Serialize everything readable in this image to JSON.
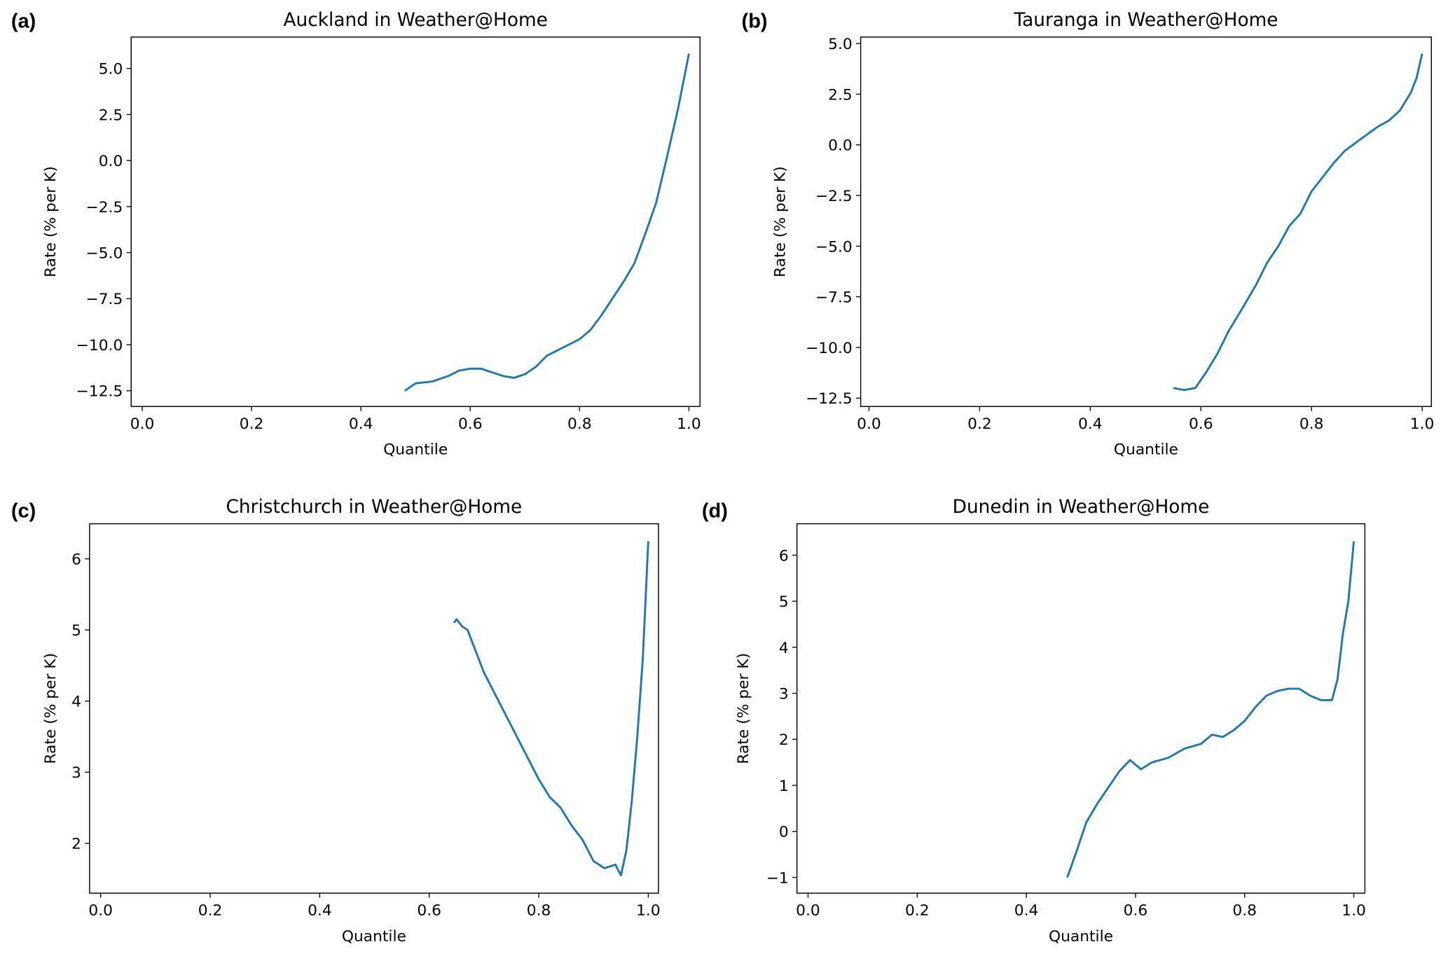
{
  "chart_data": [
    {
      "type": "line",
      "panel_label": "(a)",
      "title": "Auckland in Weather@Home",
      "xlabel": "Quantile",
      "ylabel": "Rate (% per K)",
      "xlim": [
        0,
        1
      ],
      "ylim": [
        -13.3,
        6.7
      ],
      "xticks": [
        "0.0",
        "0.2",
        "0.4",
        "0.6",
        "0.8",
        "1.0"
      ],
      "yticks": [
        5.0,
        2.5,
        0.0,
        -2.5,
        -5.0,
        -7.5,
        -10.0,
        -12.5
      ],
      "ytick_labels": [
        "5.0",
        "2.5",
        "0.0",
        "−2.5",
        "−5.0",
        "−7.5",
        "−10.0",
        "−12.5"
      ],
      "color": "#1f77b4",
      "x": [
        0.48,
        0.5,
        0.53,
        0.56,
        0.58,
        0.6,
        0.62,
        0.64,
        0.66,
        0.68,
        0.7,
        0.72,
        0.74,
        0.76,
        0.78,
        0.8,
        0.82,
        0.84,
        0.86,
        0.88,
        0.9,
        0.92,
        0.94,
        0.96,
        0.98,
        0.99,
        1.0
      ],
      "y": [
        -12.5,
        -12.1,
        -12.0,
        -11.7,
        -11.4,
        -11.3,
        -11.3,
        -11.5,
        -11.7,
        -11.8,
        -11.6,
        -11.2,
        -10.6,
        -10.3,
        -10.0,
        -9.7,
        -9.2,
        -8.4,
        -7.5,
        -6.6,
        -5.6,
        -4.0,
        -2.3,
        0.2,
        2.8,
        4.3,
        5.8
      ]
    },
    {
      "type": "line",
      "panel_label": "(b)",
      "title": "Tauranga in Weather@Home",
      "xlabel": "Quantile",
      "ylabel": "Rate (% per K)",
      "xlim": [
        0,
        1
      ],
      "ylim": [
        -12.9,
        5.3
      ],
      "xticks": [
        "0.0",
        "0.2",
        "0.4",
        "0.6",
        "0.8",
        "1.0"
      ],
      "yticks": [
        5.0,
        2.5,
        0.0,
        -2.5,
        -5.0,
        -7.5,
        -10.0,
        -12.5
      ],
      "ytick_labels": [
        "5.0",
        "2.5",
        "0.0",
        "−2.5",
        "−5.0",
        "−7.5",
        "−10.0",
        "−12.5"
      ],
      "color": "#1f77b4",
      "x": [
        0.55,
        0.57,
        0.59,
        0.61,
        0.63,
        0.65,
        0.67,
        0.7,
        0.72,
        0.74,
        0.76,
        0.78,
        0.8,
        0.82,
        0.84,
        0.86,
        0.88,
        0.9,
        0.92,
        0.94,
        0.96,
        0.98,
        0.99,
        1.0
      ],
      "y": [
        -12.0,
        -12.1,
        -12.0,
        -11.2,
        -10.3,
        -9.2,
        -8.3,
        -6.9,
        -5.8,
        -5.0,
        -4.0,
        -3.4,
        -2.3,
        -1.6,
        -0.9,
        -0.3,
        0.1,
        0.5,
        0.9,
        1.2,
        1.7,
        2.6,
        3.3,
        4.5
      ]
    },
    {
      "type": "line",
      "panel_label": "(c)",
      "title": "Christchurch in Weather@Home",
      "xlabel": "Quantile",
      "ylabel": "Rate (% per K)",
      "xlim": [
        0,
        1
      ],
      "ylim": [
        1.3,
        6.5
      ],
      "xticks": [
        "0.0",
        "0.2",
        "0.4",
        "0.6",
        "0.8",
        "1.0"
      ],
      "yticks": [
        6,
        5,
        4,
        3,
        2
      ],
      "ytick_labels": [
        "6",
        "5",
        "4",
        "3",
        "2"
      ],
      "color": "#1f77b4",
      "x": [
        0.645,
        0.65,
        0.66,
        0.67,
        0.68,
        0.7,
        0.72,
        0.74,
        0.76,
        0.78,
        0.8,
        0.82,
        0.84,
        0.86,
        0.88,
        0.9,
        0.92,
        0.94,
        0.95,
        0.96,
        0.97,
        0.98,
        0.99,
        1.0
      ],
      "y": [
        5.1,
        5.15,
        5.05,
        5.0,
        4.8,
        4.4,
        4.1,
        3.8,
        3.5,
        3.2,
        2.9,
        2.65,
        2.5,
        2.25,
        2.05,
        1.75,
        1.65,
        1.7,
        1.55,
        1.9,
        2.6,
        3.5,
        4.6,
        6.25
      ]
    },
    {
      "type": "line",
      "panel_label": "(d)",
      "title": "Dunedin in Weather@Home",
      "xlabel": "Quantile",
      "ylabel": "Rate (% per K)",
      "xlim": [
        0,
        1
      ],
      "ylim": [
        -1.3,
        6.7
      ],
      "xticks": [
        "0.0",
        "0.2",
        "0.4",
        "0.6",
        "0.8",
        "1.0"
      ],
      "yticks": [
        6,
        5,
        4,
        3,
        2,
        1,
        0,
        -1
      ],
      "ytick_labels": [
        "6",
        "5",
        "4",
        "3",
        "2",
        "1",
        "0",
        "−1"
      ],
      "color": "#1f77b4",
      "x": [
        0.475,
        0.49,
        0.51,
        0.53,
        0.55,
        0.57,
        0.59,
        0.61,
        0.63,
        0.66,
        0.69,
        0.72,
        0.74,
        0.76,
        0.78,
        0.8,
        0.82,
        0.84,
        0.86,
        0.88,
        0.9,
        0.92,
        0.94,
        0.96,
        0.97,
        0.98,
        0.99,
        1.0
      ],
      "y": [
        -1.0,
        -0.5,
        0.2,
        0.6,
        0.95,
        1.3,
        1.55,
        1.35,
        1.5,
        1.6,
        1.8,
        1.9,
        2.1,
        2.05,
        2.2,
        2.4,
        2.7,
        2.95,
        3.05,
        3.1,
        3.1,
        2.95,
        2.85,
        2.85,
        3.3,
        4.3,
        5.0,
        6.3
      ]
    }
  ]
}
